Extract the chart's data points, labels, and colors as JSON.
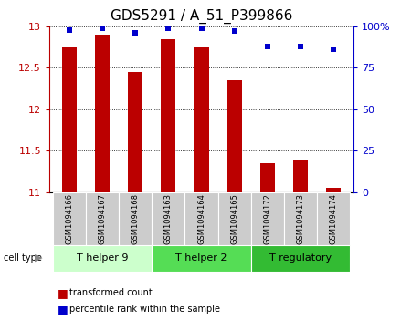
{
  "title": "GDS5291 / A_51_P399866",
  "samples": [
    "GSM1094166",
    "GSM1094167",
    "GSM1094168",
    "GSM1094163",
    "GSM1094164",
    "GSM1094165",
    "GSM1094172",
    "GSM1094173",
    "GSM1094174"
  ],
  "transformed_counts": [
    12.75,
    12.9,
    12.45,
    12.85,
    12.75,
    12.35,
    11.35,
    11.38,
    11.05
  ],
  "percentile_ranks": [
    98,
    99,
    96,
    99,
    99,
    97,
    88,
    88,
    86
  ],
  "ylim_left": [
    11,
    13
  ],
  "ylim_right": [
    0,
    100
  ],
  "yticks_left": [
    11,
    11.5,
    12,
    12.5,
    13
  ],
  "yticks_right": [
    0,
    25,
    50,
    75,
    100
  ],
  "yticklabels_right": [
    "0",
    "25",
    "50",
    "75",
    "100%"
  ],
  "bar_color": "#bb0000",
  "dot_color": "#0000cc",
  "bar_width": 0.45,
  "groups": [
    {
      "label": "T helper 9",
      "indices": [
        0,
        1,
        2
      ],
      "color": "#ccffcc"
    },
    {
      "label": "T helper 2",
      "indices": [
        3,
        4,
        5
      ],
      "color": "#55dd55"
    },
    {
      "label": "T regulatory",
      "indices": [
        6,
        7,
        8
      ],
      "color": "#33bb33"
    }
  ],
  "cell_type_label": "cell type",
  "legend_bar_label": "transformed count",
  "legend_dot_label": "percentile rank within the sample",
  "background_color": "#ffffff",
  "plot_bg_color": "#ffffff",
  "tick_bg_color": "#cccccc",
  "title_fontsize": 11,
  "axis_fontsize": 8,
  "sample_fontsize": 6,
  "group_fontsize": 8,
  "legend_fontsize": 7
}
